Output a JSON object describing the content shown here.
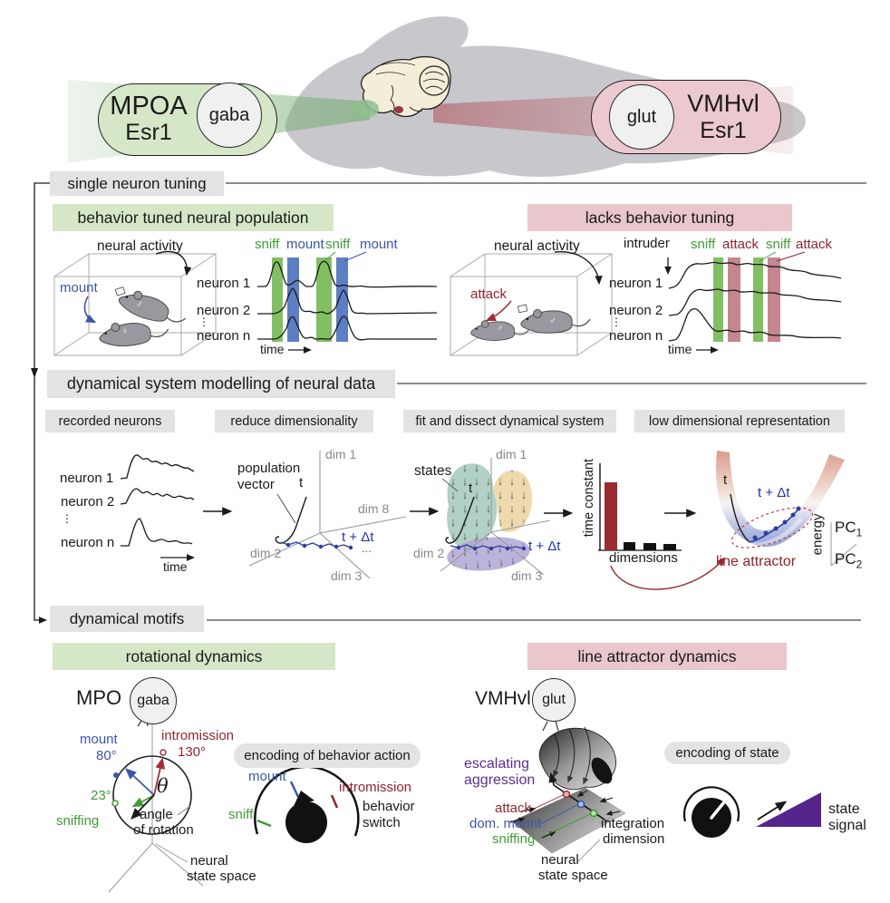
{
  "top": {
    "mpoa": {
      "region": "MPOA",
      "gene": "Esr1",
      "cell": "gaba"
    },
    "vmh": {
      "region": "VMHvl",
      "gene": "Esr1",
      "cell": "glut"
    }
  },
  "sections": {
    "s1": "single neuron tuning",
    "s2": "dynamical system modelling of neural data",
    "s3": "dynamical motifs"
  },
  "tuned": {
    "title": "behavior tuned neural population",
    "neural_activity": "neural activity",
    "behavior": "mount",
    "male": "♂",
    "female": "♀",
    "epochs": [
      "sniff",
      "mount",
      "sniff",
      "mount"
    ],
    "n1": "neuron 1",
    "n2": "neuron 2",
    "nn": "neuron n",
    "dots": "⋮",
    "time": "time"
  },
  "untuned": {
    "title": "lacks behavior tuning",
    "neural_activity": "neural activity",
    "behavior": "attack",
    "intruder": "intruder",
    "male1": "♂",
    "male2": "♂",
    "epochs": [
      "sniff",
      "attack",
      "sniff",
      "attack"
    ],
    "n1": "neuron 1",
    "n2": "neuron 2",
    "nn": "neuron n",
    "dots": "⋮",
    "time": "time"
  },
  "modelling": {
    "p1": "recorded neurons",
    "p2": "reduce dimensionality",
    "p3": "fit and dissect dynamical system",
    "p4": "low dimensional representation",
    "n1": "neuron 1",
    "n2": "neuron 2",
    "nn": "neuron n",
    "dots": "⋮",
    "time": "time",
    "pop1": "population",
    "pop2": "vector",
    "t": "t",
    "tdt": "t + Δt",
    "ellipsis": "...",
    "dim1": "dim 1",
    "dim8": "dim 8",
    "dim2": "dim 2",
    "dim3": "dim 3",
    "states": "states",
    "bar_ylabel": "time constant",
    "bar_xlabel": "dimensions",
    "bar_values": [
      1.0,
      0.12,
      0.1,
      0.09
    ],
    "line_attractor": "line attractor",
    "energy": "energy",
    "pc": "PC",
    "pc1_sub": "1",
    "pc2_sub": "2"
  },
  "rotational": {
    "title": "rotational dynamics",
    "region": "MPO",
    "cell": "gaba",
    "mount": "mount",
    "mount_deg": "80°",
    "intro": "intromission",
    "intro_deg": "130°",
    "sniff_deg": "23°",
    "sniffing": "sniffing",
    "theta": "θ",
    "angle_l1": "angle",
    "angle_l2": "of rotation",
    "space_l1": "neural",
    "space_l2": "state space",
    "dial_title": "encoding of behavior action",
    "dial_sniff": "sniff",
    "dial_mount": "mount",
    "dial_intro": "intromission",
    "switch_l1": "behavior",
    "switch_l2": "switch"
  },
  "attractor": {
    "title": "line attractor dynamics",
    "region": "VMHvl",
    "cell": "glut",
    "esc_l1": "escalating",
    "esc_l2": "aggression",
    "attack": "attack",
    "dom_mount": "dom. mount",
    "sniffing": "sniffing",
    "integ_l1": "integration",
    "integ_l2": "dimension",
    "space_l1": "neural",
    "space_l2": "state space",
    "dial_title": "encoding of state",
    "signal_l1": "state",
    "signal_l2": "signal"
  },
  "colors": {
    "green_bg": "#d6e7c8",
    "pink_bg": "#e9c7cc",
    "gray_bg": "#e3e3e3",
    "sniff_green": "#3f9c35",
    "mount_blue": "#3a57a7",
    "attack_red": "#8e2430",
    "purple": "#5b2d8e",
    "bar_red": "#9a2b31"
  }
}
